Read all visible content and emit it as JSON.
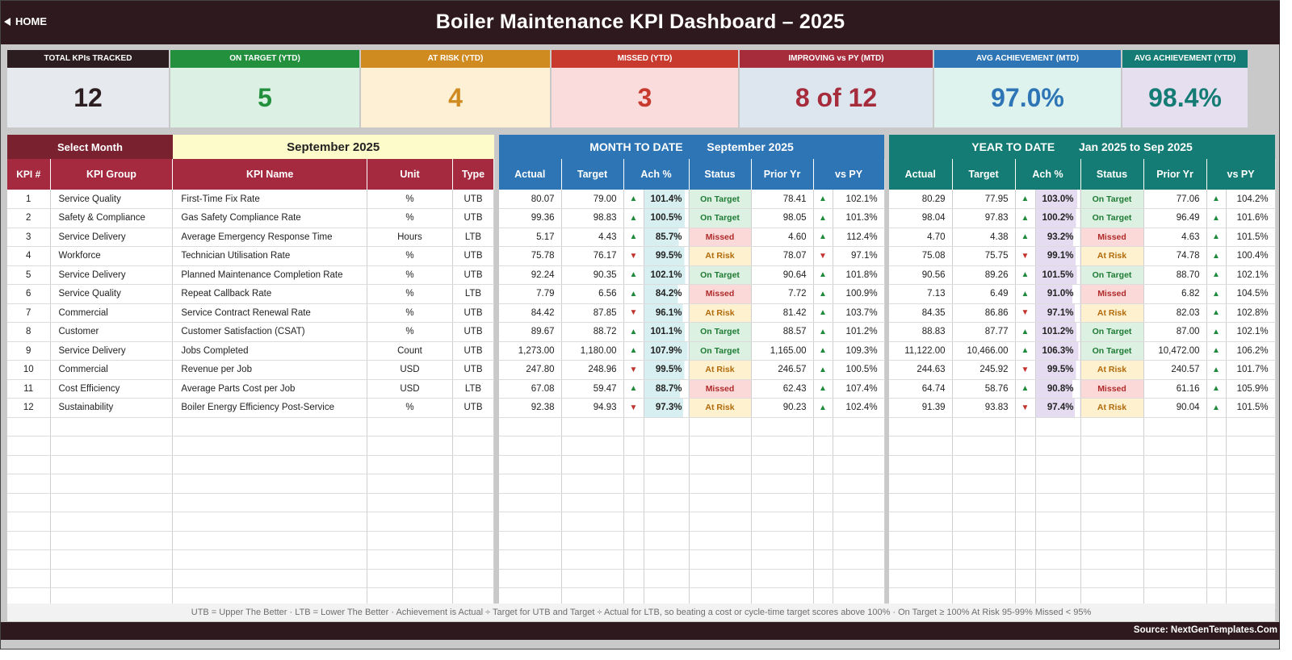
{
  "header": {
    "home_label": "HOME",
    "title": "Boiler Maintenance KPI Dashboard   –   2025"
  },
  "cards": [
    {
      "caption": "TOTAL KPIs TRACKED",
      "value": "12",
      "cap_color": "#2c1d20",
      "bg": "#e6e9ee",
      "fg": "#2c1d20"
    },
    {
      "caption": "ON TARGET (YTD)",
      "value": "5",
      "cap_color": "#23903e",
      "bg": "#dcf1e3",
      "fg": "#23903e"
    },
    {
      "caption": "AT RISK (YTD)",
      "value": "4",
      "cap_color": "#cf8a20",
      "bg": "#fdf0d5",
      "fg": "#cf8a20"
    },
    {
      "caption": "MISSED (YTD)",
      "value": "3",
      "cap_color": "#c83a2e",
      "bg": "#fadcdc",
      "fg": "#c83a2e"
    },
    {
      "caption": "IMPROVING vs PY (MTD)",
      "value": "8 of 12",
      "cap_color": "#a62c3c",
      "bg": "#dde6ef",
      "fg": "#a62c3c"
    },
    {
      "caption": "AVG ACHIEVEMENT (MTD)",
      "value": "97.0%",
      "cap_color": "#2e75b6",
      "bg": "#dff3ee",
      "fg": "#2e75b6"
    },
    {
      "caption": "AVG ACHIEVEMENT (YTD)",
      "value": "98.4%",
      "cap_color": "#147c74",
      "bg": "#e6dff0",
      "fg": "#147c74"
    }
  ],
  "selector": {
    "label": "Select Month",
    "value": "September 2025"
  },
  "mtd": {
    "label": "MONTH TO DATE",
    "period": "September 2025"
  },
  "ytd": {
    "label": "YEAR TO DATE",
    "period": "Jan 2025  to  Sep 2025"
  },
  "columns": {
    "left": [
      "KPI #",
      "KPI Group",
      "KPI Name",
      "Unit",
      "Type"
    ],
    "metrics": [
      "Actual",
      "Target",
      "Ach %",
      "Status",
      "Prior Yr",
      "vs PY"
    ]
  },
  "colors": {
    "left_header": "#a52a3f",
    "mtd_header": "#2e75b6",
    "ytd_header": "#147c74",
    "selector_label_bg": "#7a2130",
    "selector_value_bg": "#fdfbc9",
    "mtd_ach_bg": "#d7eff0",
    "ytd_ach_bg": "#e6dcf2"
  },
  "kpis": [
    {
      "no": "1",
      "group": "Service Quality",
      "name": "First-Time Fix Rate",
      "unit": "%",
      "type": "UTB",
      "mtd": {
        "actual": "80.07",
        "target": "79.00",
        "ach_dir": "up",
        "ach": "101.4%",
        "status": "On Target",
        "prior": "78.41",
        "py_dir": "up",
        "vs_py": "102.1%"
      },
      "ytd": {
        "actual": "80.29",
        "target": "77.95",
        "ach_dir": "up",
        "ach": "103.0%",
        "status": "On Target",
        "prior": "77.06",
        "py_dir": "up",
        "vs_py": "104.2%"
      }
    },
    {
      "no": "2",
      "group": "Safety & Compliance",
      "name": "Gas Safety Compliance Rate",
      "unit": "%",
      "type": "UTB",
      "mtd": {
        "actual": "99.36",
        "target": "98.83",
        "ach_dir": "up",
        "ach": "100.5%",
        "status": "On Target",
        "prior": "98.05",
        "py_dir": "up",
        "vs_py": "101.3%"
      },
      "ytd": {
        "actual": "98.04",
        "target": "97.83",
        "ach_dir": "up",
        "ach": "100.2%",
        "status": "On Target",
        "prior": "96.49",
        "py_dir": "up",
        "vs_py": "101.6%"
      }
    },
    {
      "no": "3",
      "group": "Service Delivery",
      "name": "Average Emergency Response Time",
      "unit": "Hours",
      "type": "LTB",
      "mtd": {
        "actual": "5.17",
        "target": "4.43",
        "ach_dir": "up",
        "ach": "85.7%",
        "status": "Missed",
        "prior": "4.60",
        "py_dir": "up",
        "vs_py": "112.4%"
      },
      "ytd": {
        "actual": "4.70",
        "target": "4.38",
        "ach_dir": "up",
        "ach": "93.2%",
        "status": "Missed",
        "prior": "4.63",
        "py_dir": "up",
        "vs_py": "101.5%"
      }
    },
    {
      "no": "4",
      "group": "Workforce",
      "name": "Technician Utilisation Rate",
      "unit": "%",
      "type": "UTB",
      "mtd": {
        "actual": "75.78",
        "target": "76.17",
        "ach_dir": "down",
        "ach": "99.5%",
        "status": "At Risk",
        "prior": "78.07",
        "py_dir": "down",
        "vs_py": "97.1%"
      },
      "ytd": {
        "actual": "75.08",
        "target": "75.75",
        "ach_dir": "down",
        "ach": "99.1%",
        "status": "At Risk",
        "prior": "74.78",
        "py_dir": "up",
        "vs_py": "100.4%"
      }
    },
    {
      "no": "5",
      "group": "Service Delivery",
      "name": "Planned Maintenance Completion Rate",
      "unit": "%",
      "type": "UTB",
      "mtd": {
        "actual": "92.24",
        "target": "90.35",
        "ach_dir": "up",
        "ach": "102.1%",
        "status": "On Target",
        "prior": "90.64",
        "py_dir": "up",
        "vs_py": "101.8%"
      },
      "ytd": {
        "actual": "90.56",
        "target": "89.26",
        "ach_dir": "up",
        "ach": "101.5%",
        "status": "On Target",
        "prior": "88.70",
        "py_dir": "up",
        "vs_py": "102.1%"
      }
    },
    {
      "no": "6",
      "group": "Service Quality",
      "name": "Repeat Callback Rate",
      "unit": "%",
      "type": "LTB",
      "mtd": {
        "actual": "7.79",
        "target": "6.56",
        "ach_dir": "up",
        "ach": "84.2%",
        "status": "Missed",
        "prior": "7.72",
        "py_dir": "up",
        "vs_py": "100.9%"
      },
      "ytd": {
        "actual": "7.13",
        "target": "6.49",
        "ach_dir": "up",
        "ach": "91.0%",
        "status": "Missed",
        "prior": "6.82",
        "py_dir": "up",
        "vs_py": "104.5%"
      }
    },
    {
      "no": "7",
      "group": "Commercial",
      "name": "Service Contract Renewal Rate",
      "unit": "%",
      "type": "UTB",
      "mtd": {
        "actual": "84.42",
        "target": "87.85",
        "ach_dir": "down",
        "ach": "96.1%",
        "status": "At Risk",
        "prior": "81.42",
        "py_dir": "up",
        "vs_py": "103.7%"
      },
      "ytd": {
        "actual": "84.35",
        "target": "86.86",
        "ach_dir": "down",
        "ach": "97.1%",
        "status": "At Risk",
        "prior": "82.03",
        "py_dir": "up",
        "vs_py": "102.8%"
      }
    },
    {
      "no": "8",
      "group": "Customer",
      "name": "Customer Satisfaction (CSAT)",
      "unit": "%",
      "type": "UTB",
      "mtd": {
        "actual": "89.67",
        "target": "88.72",
        "ach_dir": "up",
        "ach": "101.1%",
        "status": "On Target",
        "prior": "88.57",
        "py_dir": "up",
        "vs_py": "101.2%"
      },
      "ytd": {
        "actual": "88.83",
        "target": "87.77",
        "ach_dir": "up",
        "ach": "101.2%",
        "status": "On Target",
        "prior": "87.00",
        "py_dir": "up",
        "vs_py": "102.1%"
      }
    },
    {
      "no": "9",
      "group": "Service Delivery",
      "name": "Jobs Completed",
      "unit": "Count",
      "type": "UTB",
      "mtd": {
        "actual": "1,273.00",
        "target": "1,180.00",
        "ach_dir": "up",
        "ach": "107.9%",
        "status": "On Target",
        "prior": "1,165.00",
        "py_dir": "up",
        "vs_py": "109.3%"
      },
      "ytd": {
        "actual": "11,122.00",
        "target": "10,466.00",
        "ach_dir": "up",
        "ach": "106.3%",
        "status": "On Target",
        "prior": "10,472.00",
        "py_dir": "up",
        "vs_py": "106.2%"
      }
    },
    {
      "no": "10",
      "group": "Commercial",
      "name": "Revenue per Job",
      "unit": "USD",
      "type": "UTB",
      "mtd": {
        "actual": "247.80",
        "target": "248.96",
        "ach_dir": "down",
        "ach": "99.5%",
        "status": "At Risk",
        "prior": "246.57",
        "py_dir": "up",
        "vs_py": "100.5%"
      },
      "ytd": {
        "actual": "244.63",
        "target": "245.92",
        "ach_dir": "down",
        "ach": "99.5%",
        "status": "At Risk",
        "prior": "240.57",
        "py_dir": "up",
        "vs_py": "101.7%"
      }
    },
    {
      "no": "11",
      "group": "Cost Efficiency",
      "name": "Average Parts Cost per Job",
      "unit": "USD",
      "type": "LTB",
      "mtd": {
        "actual": "67.08",
        "target": "59.47",
        "ach_dir": "up",
        "ach": "88.7%",
        "status": "Missed",
        "prior": "62.43",
        "py_dir": "up",
        "vs_py": "107.4%"
      },
      "ytd": {
        "actual": "64.74",
        "target": "58.76",
        "ach_dir": "up",
        "ach": "90.8%",
        "status": "Missed",
        "prior": "61.16",
        "py_dir": "up",
        "vs_py": "105.9%"
      }
    },
    {
      "no": "12",
      "group": "Sustainability",
      "name": "Boiler Energy Efficiency Post-Service",
      "unit": "%",
      "type": "UTB",
      "mtd": {
        "actual": "92.38",
        "target": "94.93",
        "ach_dir": "down",
        "ach": "97.3%",
        "status": "At Risk",
        "prior": "90.23",
        "py_dir": "up",
        "vs_py": "102.4%"
      },
      "ytd": {
        "actual": "91.39",
        "target": "93.83",
        "ach_dir": "down",
        "ach": "97.4%",
        "status": "At Risk",
        "prior": "90.04",
        "py_dir": "up",
        "vs_py": "101.5%"
      }
    }
  ],
  "footer": {
    "note": "UTB = Upper The Better   ·   LTB = Lower The Better   ·   Achievement is Actual ÷ Target for UTB and Target ÷ Actual for LTB, so beating a cost or cycle-time target scores above 100%   ·   On Target ≥ 100%    At Risk 95-99%    Missed < 95%",
    "source": "Source: NextGenTemplates.Com"
  }
}
